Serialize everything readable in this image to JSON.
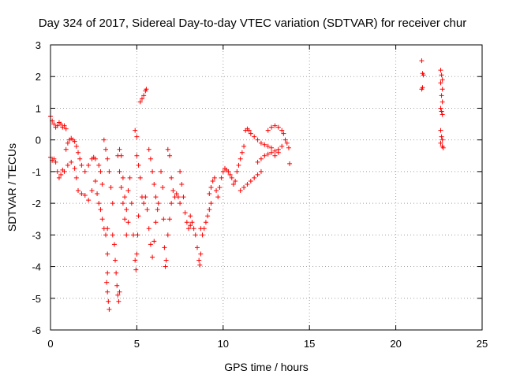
{
  "chart_data": {
    "type": "scatter",
    "title": "Day 324 of 2017, Sidereal Day-to-day VTEC variation (SDTVAR) for receiver chur",
    "xlabel": "GPS time / hours",
    "ylabel": "SDTVAR / TECUs",
    "xlim": [
      0,
      25
    ],
    "ylim": [
      -6,
      3
    ],
    "xticks": [
      0,
      5,
      10,
      15,
      20,
      25
    ],
    "yticks": [
      -6,
      -5,
      -4,
      -3,
      -2,
      -1,
      0,
      1,
      2,
      3
    ],
    "xtick_labels": [
      "0",
      "5",
      "10",
      "15",
      "20",
      "25"
    ],
    "ytick_labels": [
      "-6",
      "-5",
      "-4",
      "-3",
      "-2",
      "-1",
      "0",
      "1",
      "2",
      "3"
    ],
    "grid": true,
    "marker": "+",
    "color": "#ff0000",
    "series": [
      {
        "name": "SDTVAR",
        "points": [
          [
            0.0,
            0.75
          ],
          [
            0.1,
            0.6
          ],
          [
            0.2,
            0.5
          ],
          [
            0.3,
            0.4
          ],
          [
            0.4,
            0.45
          ],
          [
            0.5,
            0.55
          ],
          [
            0.6,
            0.5
          ],
          [
            0.7,
            0.4
          ],
          [
            0.8,
            0.45
          ],
          [
            0.9,
            0.35
          ],
          [
            0.0,
            -0.55
          ],
          [
            0.1,
            -0.65
          ],
          [
            0.2,
            -0.6
          ],
          [
            0.3,
            -0.7
          ],
          [
            0.4,
            -1.0
          ],
          [
            0.5,
            -1.2
          ],
          [
            0.6,
            -1.1
          ],
          [
            0.7,
            -0.95
          ],
          [
            0.8,
            -1.0
          ],
          [
            0.9,
            -0.3
          ],
          [
            1.0,
            -0.1
          ],
          [
            1.1,
            0.0
          ],
          [
            1.2,
            0.05
          ],
          [
            1.3,
            0.0
          ],
          [
            1.4,
            -0.05
          ],
          [
            1.5,
            -0.2
          ],
          [
            1.6,
            -0.4
          ],
          [
            1.7,
            -0.6
          ],
          [
            1.8,
            -0.8
          ],
          [
            1.0,
            -0.8
          ],
          [
            1.2,
            -0.7
          ],
          [
            1.4,
            -0.9
          ],
          [
            1.5,
            -1.2
          ],
          [
            1.6,
            -1.6
          ],
          [
            1.8,
            -1.7
          ],
          [
            2.0,
            -1.75
          ],
          [
            2.2,
            -1.9
          ],
          [
            2.4,
            -1.6
          ],
          [
            2.6,
            -1.3
          ],
          [
            2.0,
            -1.0
          ],
          [
            2.2,
            -0.8
          ],
          [
            2.4,
            -0.6
          ],
          [
            2.5,
            -0.55
          ],
          [
            2.6,
            -0.6
          ],
          [
            2.8,
            -0.8
          ],
          [
            2.9,
            -1.0
          ],
          [
            3.0,
            -1.4
          ],
          [
            2.7,
            -1.7
          ],
          [
            2.8,
            -2.0
          ],
          [
            2.9,
            -2.2
          ],
          [
            3.0,
            -2.5
          ],
          [
            3.1,
            -2.8
          ],
          [
            3.2,
            -3.0
          ],
          [
            3.3,
            -2.8
          ],
          [
            3.3,
            -3.6
          ],
          [
            3.25,
            -4.5
          ],
          [
            3.3,
            -4.8
          ],
          [
            3.35,
            -5.1
          ],
          [
            3.4,
            -5.35
          ],
          [
            3.3,
            -4.2
          ],
          [
            3.1,
            0.0
          ],
          [
            3.2,
            -0.3
          ],
          [
            3.3,
            -0.6
          ],
          [
            3.4,
            -1.0
          ],
          [
            3.5,
            -1.5
          ],
          [
            3.6,
            -2.0
          ],
          [
            3.6,
            -3.0
          ],
          [
            3.7,
            -3.3
          ],
          [
            3.75,
            -3.8
          ],
          [
            3.8,
            -4.2
          ],
          [
            3.85,
            -4.6
          ],
          [
            3.9,
            -4.9
          ],
          [
            3.95,
            -5.1
          ],
          [
            4.0,
            -4.8
          ],
          [
            3.9,
            -0.5
          ],
          [
            4.0,
            -1.0
          ],
          [
            4.1,
            -1.5
          ],
          [
            4.2,
            -2.0
          ],
          [
            4.3,
            -2.5
          ],
          [
            4.4,
            -3.0
          ],
          [
            4.5,
            -2.6
          ],
          [
            4.0,
            -0.3
          ],
          [
            4.1,
            -0.5
          ],
          [
            4.2,
            -1.2
          ],
          [
            4.3,
            -1.8
          ],
          [
            4.4,
            -2.2
          ],
          [
            4.5,
            -1.6
          ],
          [
            4.6,
            -1.2
          ],
          [
            4.7,
            -2.0
          ],
          [
            4.8,
            -3.0
          ],
          [
            4.9,
            -3.8
          ],
          [
            4.95,
            -4.1
          ],
          [
            5.0,
            -3.6
          ],
          [
            5.05,
            -3.0
          ],
          [
            5.1,
            -2.4
          ],
          [
            4.9,
            0.3
          ],
          [
            5.0,
            0.1
          ],
          [
            5.0,
            -0.5
          ],
          [
            5.1,
            -0.8
          ],
          [
            5.2,
            -1.2
          ],
          [
            5.3,
            -1.8
          ],
          [
            5.4,
            -2.0
          ],
          [
            5.2,
            1.2
          ],
          [
            5.3,
            1.3
          ],
          [
            5.4,
            1.4
          ],
          [
            5.5,
            1.55
          ],
          [
            5.55,
            1.6
          ],
          [
            5.5,
            -1.8
          ],
          [
            5.6,
            -2.2
          ],
          [
            5.7,
            -2.8
          ],
          [
            5.8,
            -3.3
          ],
          [
            5.9,
            -3.7
          ],
          [
            6.0,
            -3.2
          ],
          [
            6.1,
            -2.6
          ],
          [
            5.7,
            -0.3
          ],
          [
            5.8,
            -0.6
          ],
          [
            5.9,
            -1.0
          ],
          [
            6.0,
            -1.4
          ],
          [
            6.1,
            -1.8
          ],
          [
            6.2,
            -2.2
          ],
          [
            6.25,
            -2.0
          ],
          [
            6.4,
            -1.0
          ],
          [
            6.5,
            -1.5
          ],
          [
            6.55,
            -2.5
          ],
          [
            6.6,
            -3.4
          ],
          [
            6.65,
            -4.0
          ],
          [
            6.7,
            -3.8
          ],
          [
            6.8,
            -3.0
          ],
          [
            6.9,
            -2.5
          ],
          [
            7.0,
            -2.0
          ],
          [
            6.8,
            -0.3
          ],
          [
            6.9,
            -0.5
          ],
          [
            7.0,
            -1.2
          ],
          [
            7.1,
            -1.6
          ],
          [
            7.2,
            -1.8
          ],
          [
            7.3,
            -1.7
          ],
          [
            7.4,
            -1.8
          ],
          [
            7.5,
            -2.0
          ],
          [
            7.5,
            -1.0
          ],
          [
            7.6,
            -1.4
          ],
          [
            7.7,
            -1.8
          ],
          [
            7.8,
            -2.3
          ],
          [
            7.9,
            -2.6
          ],
          [
            8.0,
            -2.8
          ],
          [
            8.1,
            -2.7
          ],
          [
            8.1,
            -2.4
          ],
          [
            8.2,
            -2.6
          ],
          [
            8.3,
            -2.8
          ],
          [
            8.4,
            -3.0
          ],
          [
            8.5,
            -3.4
          ],
          [
            8.6,
            -3.8
          ],
          [
            8.65,
            -3.95
          ],
          [
            8.7,
            -3.6
          ],
          [
            8.7,
            -2.8
          ],
          [
            8.8,
            -3.0
          ],
          [
            8.9,
            -2.8
          ],
          [
            9.0,
            -2.6
          ],
          [
            9.1,
            -2.4
          ],
          [
            9.2,
            -2.2
          ],
          [
            9.3,
            -2.0
          ],
          [
            9.2,
            -1.7
          ],
          [
            9.3,
            -1.5
          ],
          [
            9.4,
            -1.3
          ],
          [
            9.5,
            -1.2
          ],
          [
            9.6,
            -1.6
          ],
          [
            9.7,
            -1.8
          ],
          [
            9.8,
            -1.5
          ],
          [
            9.9,
            -1.2
          ],
          [
            10.0,
            -1.0
          ],
          [
            10.1,
            -0.9
          ],
          [
            10.2,
            -0.95
          ],
          [
            10.3,
            -1.0
          ],
          [
            10.4,
            -1.1
          ],
          [
            10.5,
            -1.2
          ],
          [
            10.6,
            -1.4
          ],
          [
            10.7,
            -1.3
          ],
          [
            10.8,
            -1.0
          ],
          [
            10.9,
            -0.8
          ],
          [
            11.0,
            -0.6
          ],
          [
            11.1,
            -0.4
          ],
          [
            11.2,
            -0.2
          ],
          [
            11.3,
            0.3
          ],
          [
            11.4,
            0.35
          ],
          [
            11.5,
            0.3
          ],
          [
            11.0,
            -1.6
          ],
          [
            11.2,
            -1.5
          ],
          [
            11.4,
            -1.4
          ],
          [
            11.6,
            -1.3
          ],
          [
            11.8,
            -1.2
          ],
          [
            12.0,
            -1.1
          ],
          [
            12.2,
            -1.0
          ],
          [
            11.6,
            0.2
          ],
          [
            11.8,
            0.1
          ],
          [
            12.0,
            0.0
          ],
          [
            12.2,
            -0.1
          ],
          [
            12.4,
            -0.15
          ],
          [
            12.6,
            -0.2
          ],
          [
            12.8,
            -0.25
          ],
          [
            12.0,
            -0.7
          ],
          [
            12.2,
            -0.6
          ],
          [
            12.4,
            -0.5
          ],
          [
            12.6,
            -0.45
          ],
          [
            12.8,
            -0.4
          ],
          [
            13.0,
            -0.35
          ],
          [
            13.2,
            -0.3
          ],
          [
            12.6,
            0.3
          ],
          [
            12.8,
            0.4
          ],
          [
            13.0,
            0.45
          ],
          [
            13.2,
            0.4
          ],
          [
            13.4,
            0.3
          ],
          [
            13.5,
            0.2
          ],
          [
            13.0,
            -0.5
          ],
          [
            13.2,
            -0.4
          ],
          [
            13.4,
            -0.2
          ],
          [
            13.6,
            0.0
          ],
          [
            13.7,
            -0.1
          ],
          [
            13.8,
            -0.25
          ],
          [
            13.85,
            -0.75
          ],
          [
            21.5,
            2.5
          ],
          [
            21.55,
            2.1
          ],
          [
            21.6,
            2.05
          ],
          [
            21.55,
            1.65
          ],
          [
            21.5,
            1.6
          ],
          [
            22.6,
            2.2
          ],
          [
            22.65,
            2.05
          ],
          [
            22.7,
            1.9
          ],
          [
            22.6,
            1.8
          ],
          [
            22.7,
            1.6
          ],
          [
            22.65,
            1.4
          ],
          [
            22.7,
            1.2
          ],
          [
            22.6,
            1.0
          ],
          [
            22.65,
            0.9
          ],
          [
            22.7,
            0.8
          ],
          [
            22.6,
            0.3
          ],
          [
            22.65,
            0.1
          ],
          [
            22.7,
            0.0
          ],
          [
            22.6,
            -0.1
          ],
          [
            22.7,
            -0.2
          ],
          [
            22.75,
            -0.25
          ]
        ]
      }
    ]
  }
}
